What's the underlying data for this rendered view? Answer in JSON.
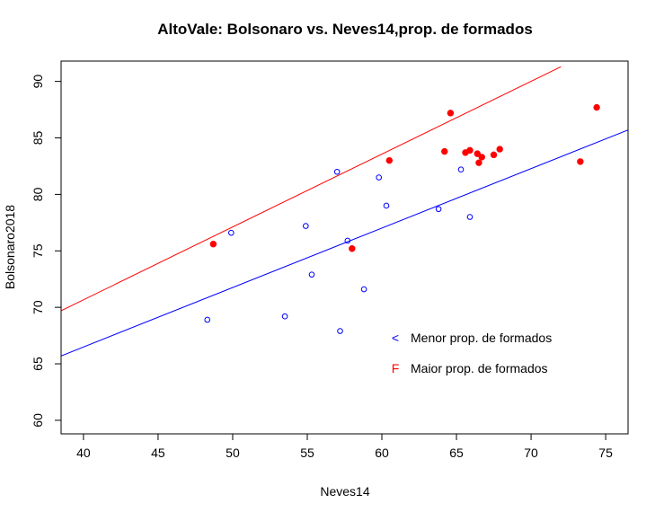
{
  "chart_data": {
    "type": "scatter",
    "title": "AltoVale: Bolsonaro vs. Neves14,prop. de formados",
    "xlabel": "Neves14",
    "ylabel": "Bolsonaro2018",
    "xlim": [
      38.5,
      76.5
    ],
    "ylim": [
      58.8,
      91.8
    ],
    "xticks": [
      40,
      45,
      50,
      55,
      60,
      65,
      70,
      75
    ],
    "yticks": [
      60,
      65,
      70,
      75,
      80,
      85,
      90
    ],
    "colors": {
      "menor": "#0000ff",
      "maior": "#ff0000"
    },
    "series": [
      {
        "name": "Menor prop. de formados",
        "symbol": "<",
        "marker": "open-circle",
        "color": "#0000ff",
        "points": [
          [
            48.3,
            68.9
          ],
          [
            49.9,
            76.6
          ],
          [
            53.5,
            69.2
          ],
          [
            54.9,
            77.2
          ],
          [
            55.3,
            72.9
          ],
          [
            57.0,
            82.0
          ],
          [
            57.2,
            67.9
          ],
          [
            57.7,
            75.9
          ],
          [
            58.8,
            71.6
          ],
          [
            59.8,
            81.5
          ],
          [
            60.3,
            79.0
          ],
          [
            63.8,
            78.7
          ],
          [
            65.3,
            82.2
          ],
          [
            65.9,
            78.0
          ]
        ],
        "fit": {
          "x": [
            38.5,
            76.5
          ],
          "y": [
            65.7,
            85.7
          ]
        }
      },
      {
        "name": "Maior prop. de formados",
        "symbol": "F",
        "marker": "filled-circle",
        "color": "#ff0000",
        "points": [
          [
            48.7,
            75.6
          ],
          [
            58.0,
            75.2
          ],
          [
            60.5,
            83.0
          ],
          [
            64.2,
            83.8
          ],
          [
            64.6,
            87.2
          ],
          [
            65.6,
            83.7
          ],
          [
            65.9,
            83.9
          ],
          [
            66.4,
            83.6
          ],
          [
            66.5,
            82.8
          ],
          [
            66.7,
            83.3
          ],
          [
            67.5,
            83.5
          ],
          [
            67.9,
            84.0
          ],
          [
            73.3,
            82.9
          ],
          [
            74.4,
            87.7
          ]
        ],
        "fit": {
          "x": [
            38.5,
            72.0
          ],
          "y": [
            69.7,
            91.3
          ]
        }
      }
    ]
  }
}
